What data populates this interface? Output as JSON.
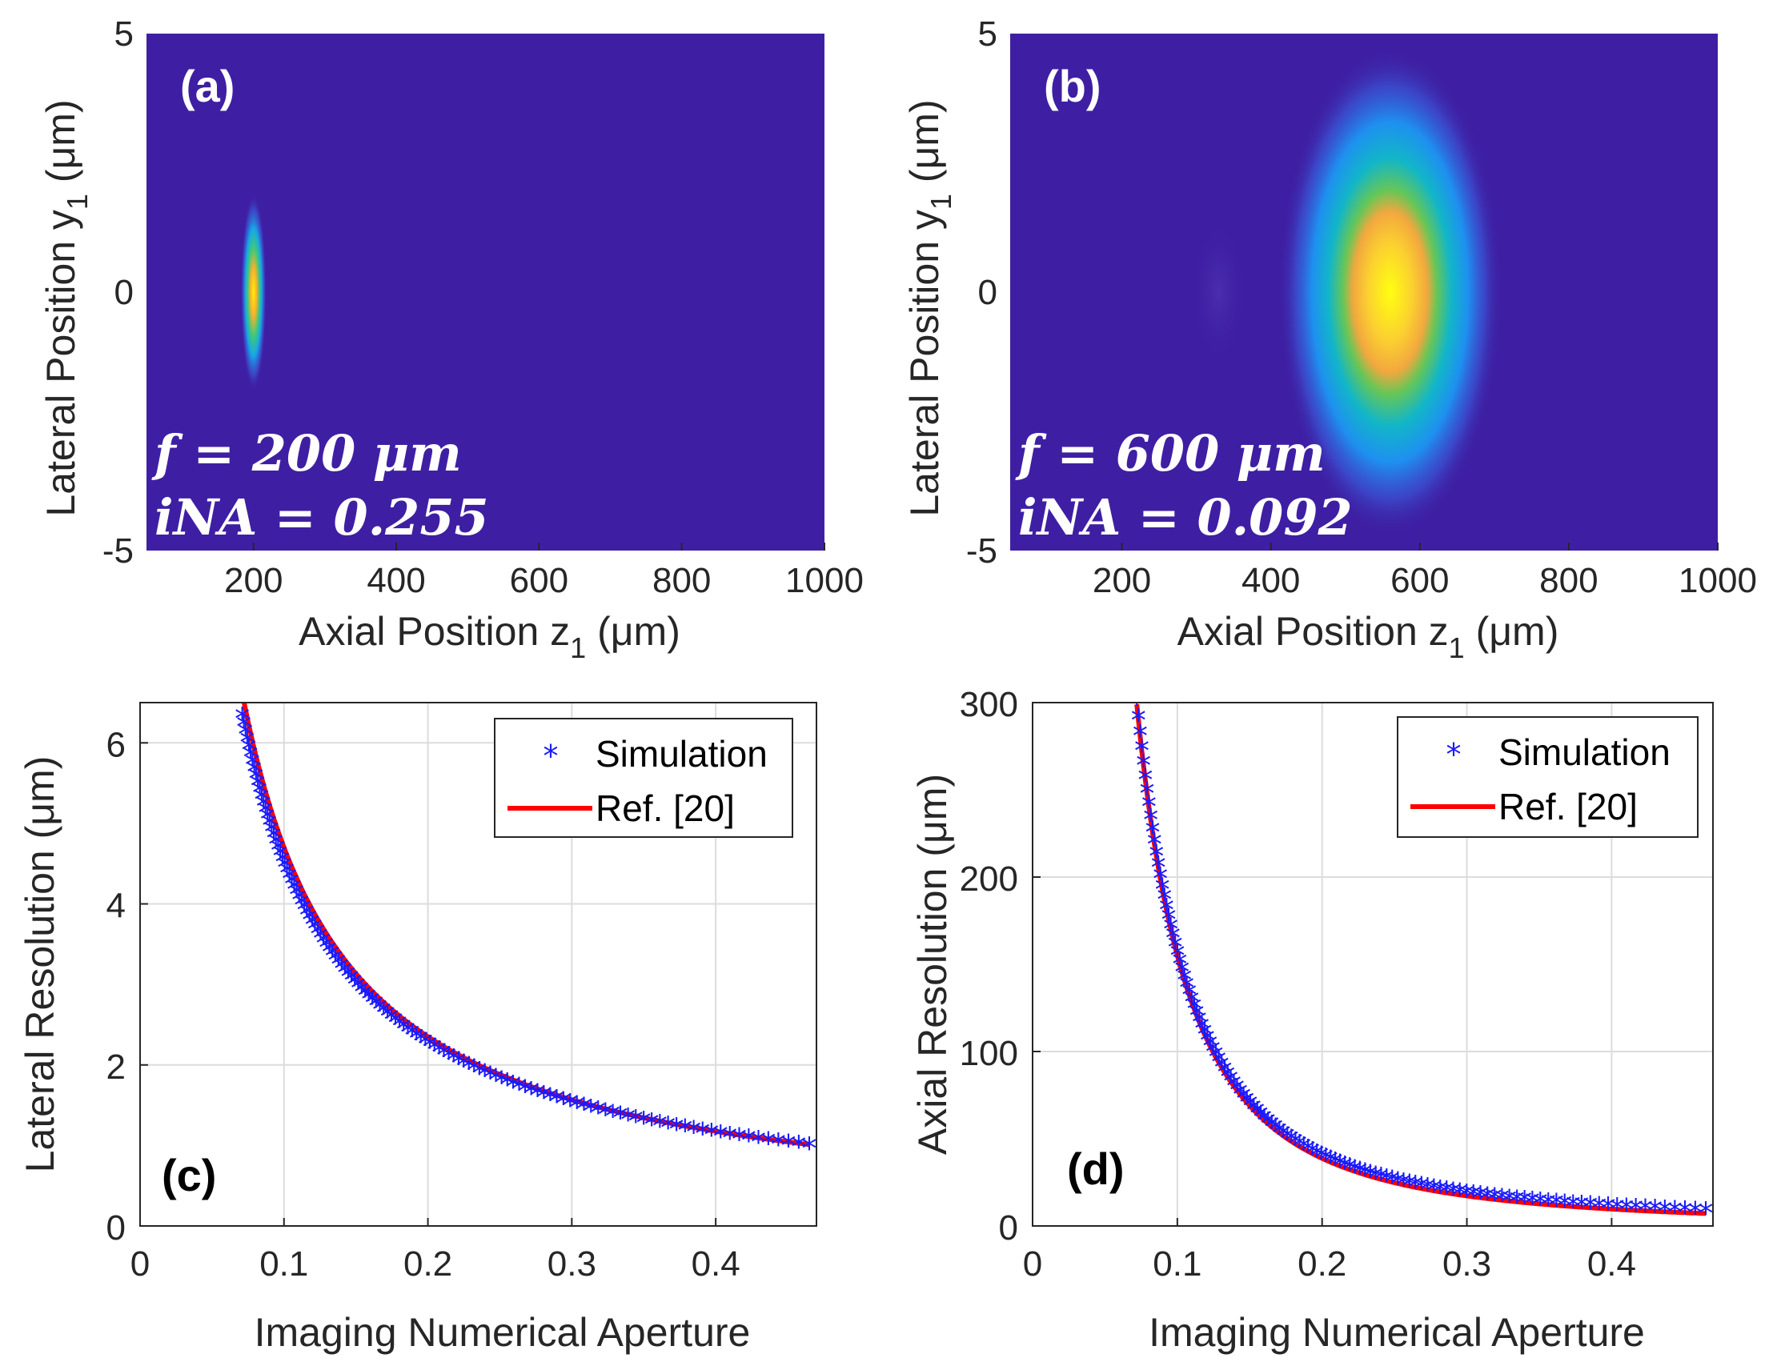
{
  "chart_data": [
    {
      "id": "a",
      "type": "heatmap",
      "panel_label": "(a)",
      "xlabel": "Axial Position z",
      "xlabel_sub": "1",
      "xlabel_unit": "(μm)",
      "ylabel": "Lateral Position y",
      "ylabel_sub": "1",
      "ylabel_unit": "(μm)",
      "xlim": [
        50,
        1000
      ],
      "ylim": [
        -5,
        5
      ],
      "xticks": [
        200,
        400,
        600,
        800,
        1000
      ],
      "yticks": [
        -5,
        0,
        5
      ],
      "annotation_f": "f = 200 μm",
      "annotation_na": "iNA = 0.255",
      "spot": {
        "z_center": 200,
        "y_center": 0,
        "z_half_width": 18,
        "y_half_width": 1.9
      }
    },
    {
      "id": "b",
      "type": "heatmap",
      "panel_label": "(b)",
      "xlabel": "Axial Position z",
      "xlabel_sub": "1",
      "xlabel_unit": "(μm)",
      "ylabel": "Lateral Position y",
      "ylabel_sub": "1",
      "ylabel_unit": "(μm)",
      "xlim": [
        50,
        1000
      ],
      "ylim": [
        -5,
        5
      ],
      "xticks": [
        200,
        400,
        600,
        800,
        1000
      ],
      "yticks": [
        -5,
        0,
        5
      ],
      "annotation_f": "f = 600 μm",
      "annotation_na": "iNA = 0.092",
      "spot": {
        "z_center": 560,
        "y_center": 0,
        "z_half_width": 150,
        "y_half_width": 4.7
      }
    },
    {
      "id": "c",
      "type": "line",
      "panel_label": "(c)",
      "xlabel": "Imaging Numerical Aperture",
      "ylabel": "Lateral Resolution",
      "ylabel_unit": "(μm)",
      "xlim": [
        0,
        0.47
      ],
      "ylim": [
        0,
        6.5
      ],
      "xticks": [
        0,
        0.1,
        0.2,
        0.3,
        0.4
      ],
      "yticks": [
        0,
        2,
        4,
        6
      ],
      "grid": true,
      "legend_position": "top-right",
      "series": [
        {
          "name": "Simulation",
          "marker": "*",
          "color": "#1a1aff",
          "model": "a/x",
          "coef": 0.447,
          "x_min": 0.071,
          "x_max": 0.465
        },
        {
          "name": "Ref. [20]",
          "line": "solid",
          "color": "#ff0000",
          "model": "a/x",
          "coef": 0.47,
          "x_min": 0.072,
          "x_max": 0.465
        }
      ]
    },
    {
      "id": "d",
      "type": "line",
      "panel_label": "(d)",
      "xlabel": "Imaging Numerical Aperture",
      "ylabel": "Axial Resolution",
      "ylabel_unit": "(μm)",
      "xlim": [
        0,
        0.47
      ],
      "ylim": [
        0,
        300
      ],
      "xticks": [
        0,
        0.1,
        0.2,
        0.3,
        0.4
      ],
      "yticks": [
        0,
        100,
        200,
        300
      ],
      "grid": true,
      "legend_position": "top-right",
      "series": [
        {
          "name": "Simulation",
          "marker": "*",
          "color": "#1a1aff",
          "model": "a/x^2",
          "coef": 1.55,
          "x_min": 0.072,
          "x_max": 0.465
        },
        {
          "name": "Ref. [20]",
          "line": "solid",
          "color": "#ff0000",
          "model": "a/x^2",
          "coef": 1.55,
          "x_min": 0.072,
          "x_max": 0.465
        }
      ]
    }
  ],
  "colors": {
    "background": "#3e1fa3",
    "axis": "#262626",
    "grid": "#dcdcdc",
    "simulation": "#1a1aff",
    "reference": "#ff0000"
  }
}
